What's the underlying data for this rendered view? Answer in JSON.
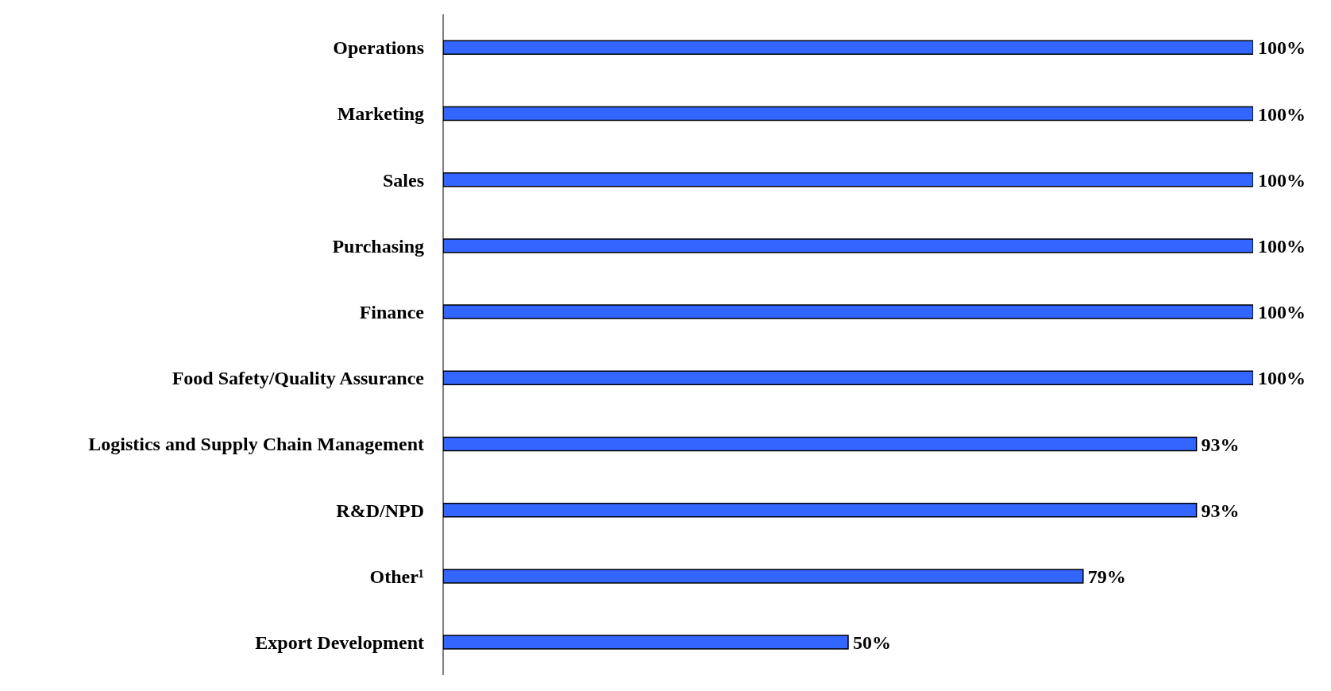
{
  "chart_data": {
    "type": "bar",
    "orientation": "horizontal",
    "categories": [
      "Operations",
      "Marketing",
      "Sales",
      "Purchasing",
      "Finance",
      "Food Safety/Quality Assurance",
      "Logistics and Supply Chain Management",
      "R&D/NPD",
      "Other¹",
      "Export Development"
    ],
    "values": [
      100,
      100,
      100,
      100,
      100,
      100,
      93,
      93,
      79,
      50
    ],
    "value_labels": [
      "100%",
      "100%",
      "100%",
      "100%",
      "100%",
      "100%",
      "93%",
      "93%",
      "79%",
      "50%"
    ],
    "color": "#3366ff"
  }
}
